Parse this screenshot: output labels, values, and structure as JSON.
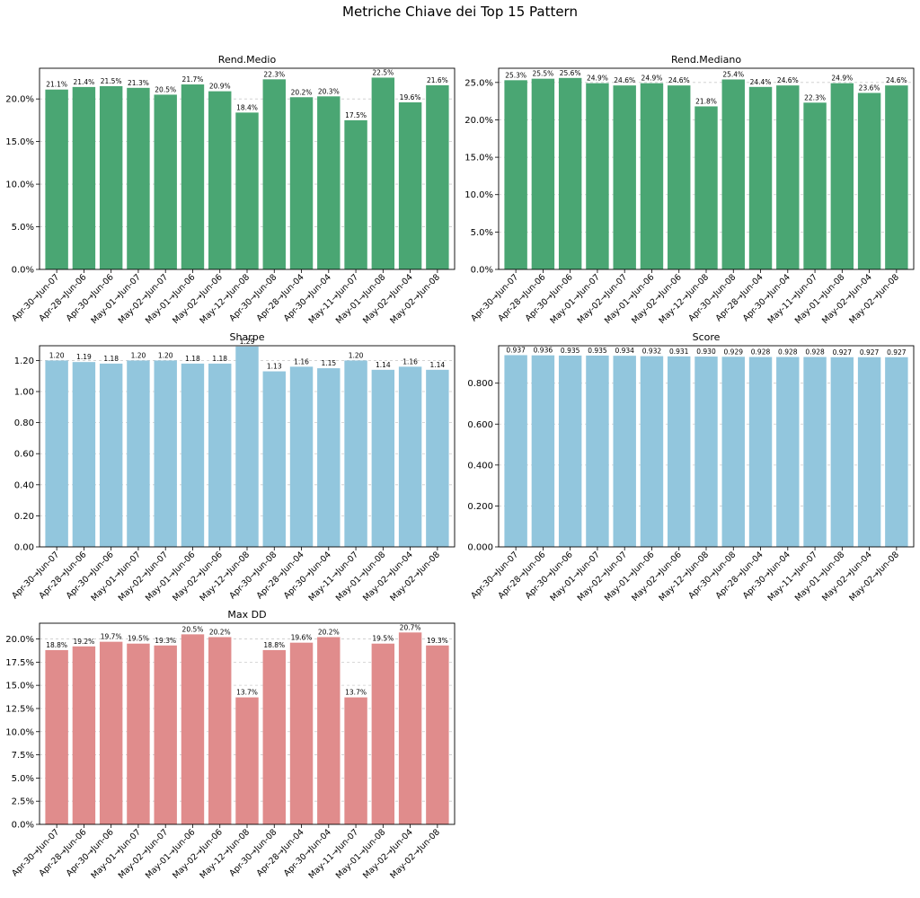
{
  "figure": {
    "title": "Metriche Chiave dei Top 15 Pattern"
  },
  "chart_data": [
    {
      "type": "bar",
      "title": "Rend.Medio",
      "color": "#4aa673",
      "categories": [
        "Apr-30→Jun-07",
        "Apr-28→Jun-06",
        "Apr-30→Jun-06",
        "May-01→Jun-07",
        "May-02→Jun-07",
        "May-01→Jun-06",
        "May-02→Jun-06",
        "May-12→Jun-08",
        "Apr-30→Jun-08",
        "Apr-28→Jun-04",
        "Apr-30→Jun-04",
        "May-11→Jun-07",
        "May-01→Jun-08",
        "May-02→Jun-04",
        "May-02→Jun-08"
      ],
      "values": [
        21.1,
        21.4,
        21.5,
        21.3,
        20.5,
        21.7,
        20.9,
        18.4,
        22.3,
        20.2,
        20.3,
        17.5,
        22.5,
        19.6,
        21.6
      ],
      "value_labels": [
        "21.1%",
        "21.4%",
        "21.5%",
        "21.3%",
        "20.5%",
        "21.7%",
        "20.9%",
        "18.4%",
        "22.3%",
        "20.2%",
        "20.3%",
        "17.5%",
        "22.5%",
        "19.6%",
        "21.6%"
      ],
      "ylim": [
        0,
        23.6
      ],
      "yticks": [
        0,
        5,
        10,
        15,
        20
      ],
      "ytick_labels": [
        "0.0%",
        "5.0%",
        "10.0%",
        "15.0%",
        "20.0%"
      ],
      "grid": "y-dashed"
    },
    {
      "type": "bar",
      "title": "Rend.Mediano",
      "color": "#4aa673",
      "categories": [
        "Apr-30→Jun-07",
        "Apr-28→Jun-06",
        "Apr-30→Jun-06",
        "May-01→Jun-07",
        "May-02→Jun-07",
        "May-01→Jun-06",
        "May-02→Jun-06",
        "May-12→Jun-08",
        "Apr-30→Jun-08",
        "Apr-28→Jun-04",
        "Apr-30→Jun-04",
        "May-11→Jun-07",
        "May-01→Jun-08",
        "May-02→Jun-04",
        "May-02→Jun-08"
      ],
      "values": [
        25.3,
        25.5,
        25.6,
        24.9,
        24.6,
        24.9,
        24.6,
        21.8,
        25.4,
        24.4,
        24.6,
        22.3,
        24.9,
        23.6,
        24.6
      ],
      "value_labels": [
        "25.3%",
        "25.5%",
        "25.6%",
        "24.9%",
        "24.6%",
        "24.9%",
        "24.6%",
        "21.8%",
        "25.4%",
        "24.4%",
        "24.6%",
        "22.3%",
        "24.9%",
        "23.6%",
        "24.6%"
      ],
      "ylim": [
        0,
        26.9
      ],
      "yticks": [
        0,
        5,
        10,
        15,
        20,
        25
      ],
      "ytick_labels": [
        "0.0%",
        "5.0%",
        "10.0%",
        "15.0%",
        "20.0%",
        "25.0%"
      ],
      "grid": "y-dashed"
    },
    {
      "type": "bar",
      "title": "Sharpe",
      "color": "#92c6dd",
      "categories": [
        "Apr-30→Jun-07",
        "Apr-28→Jun-06",
        "Apr-30→Jun-06",
        "May-01→Jun-07",
        "May-02→Jun-07",
        "May-01→Jun-06",
        "May-02→Jun-06",
        "May-12→Jun-08",
        "Apr-30→Jun-08",
        "Apr-28→Jun-04",
        "Apr-30→Jun-04",
        "May-11→Jun-07",
        "May-01→Jun-08",
        "May-02→Jun-04",
        "May-02→Jun-08"
      ],
      "values": [
        1.2,
        1.19,
        1.18,
        1.2,
        1.2,
        1.18,
        1.18,
        1.29,
        1.13,
        1.16,
        1.15,
        1.2,
        1.14,
        1.16,
        1.14
      ],
      "value_labels": [
        "1.20",
        "1.19",
        "1.18",
        "1.20",
        "1.20",
        "1.18",
        "1.18",
        "1.29",
        "1.13",
        "1.16",
        "1.15",
        "1.20",
        "1.14",
        "1.16",
        "1.14"
      ],
      "ylim": [
        0,
        1.295
      ],
      "yticks": [
        0,
        0.2,
        0.4,
        0.6,
        0.8,
        1.0,
        1.2
      ],
      "ytick_labels": [
        "0.00",
        "0.20",
        "0.40",
        "0.60",
        "0.80",
        "1.00",
        "1.20"
      ],
      "grid": "y-dashed"
    },
    {
      "type": "bar",
      "title": "Score",
      "color": "#92c6dd",
      "categories": [
        "Apr-30→Jun-07",
        "Apr-28→Jun-06",
        "Apr-30→Jun-06",
        "May-01→Jun-07",
        "May-02→Jun-07",
        "May-01→Jun-06",
        "May-02→Jun-06",
        "May-12→Jun-08",
        "Apr-30→Jun-08",
        "Apr-28→Jun-04",
        "Apr-30→Jun-04",
        "May-11→Jun-07",
        "May-01→Jun-08",
        "May-02→Jun-04",
        "May-02→Jun-08"
      ],
      "values": [
        0.937,
        0.936,
        0.935,
        0.935,
        0.934,
        0.932,
        0.931,
        0.93,
        0.929,
        0.928,
        0.928,
        0.928,
        0.927,
        0.927,
        0.927
      ],
      "value_labels": [
        "0.937",
        "0.936",
        "0.935",
        "0.935",
        "0.934",
        "0.932",
        "0.931",
        "0.930",
        "0.929",
        "0.928",
        "0.928",
        "0.928",
        "0.927",
        "0.927",
        "0.927"
      ],
      "ylim": [
        0,
        0.983
      ],
      "yticks": [
        0,
        0.2,
        0.4,
        0.6,
        0.8
      ],
      "ytick_labels": [
        "0.000",
        "0.200",
        "0.400",
        "0.600",
        "0.800"
      ],
      "grid": "y-dashed"
    },
    {
      "type": "bar",
      "title": "Max DD",
      "color": "#e08c8c",
      "categories": [
        "Apr-30→Jun-07",
        "Apr-28→Jun-06",
        "Apr-30→Jun-06",
        "May-01→Jun-07",
        "May-02→Jun-07",
        "May-01→Jun-06",
        "May-02→Jun-06",
        "May-12→Jun-08",
        "Apr-30→Jun-08",
        "Apr-28→Jun-04",
        "Apr-30→Jun-04",
        "May-11→Jun-07",
        "May-01→Jun-08",
        "May-02→Jun-04",
        "May-02→Jun-08"
      ],
      "values": [
        18.8,
        19.2,
        19.7,
        19.5,
        19.3,
        20.5,
        20.2,
        13.7,
        18.8,
        19.6,
        20.2,
        13.7,
        19.5,
        20.7,
        19.3
      ],
      "value_labels": [
        "18.8%",
        "19.2%",
        "19.7%",
        "19.5%",
        "19.3%",
        "20.5%",
        "20.2%",
        "13.7%",
        "18.8%",
        "19.6%",
        "20.2%",
        "13.7%",
        "19.5%",
        "20.7%",
        "19.3%"
      ],
      "ylim": [
        0,
        21.7
      ],
      "yticks": [
        0,
        2.5,
        5,
        7.5,
        10,
        12.5,
        15,
        17.5,
        20
      ],
      "ytick_labels": [
        "0.0%",
        "2.5%",
        "5.0%",
        "7.5%",
        "10.0%",
        "12.5%",
        "15.0%",
        "17.5%",
        "20.0%"
      ],
      "grid": "y-dashed"
    }
  ]
}
